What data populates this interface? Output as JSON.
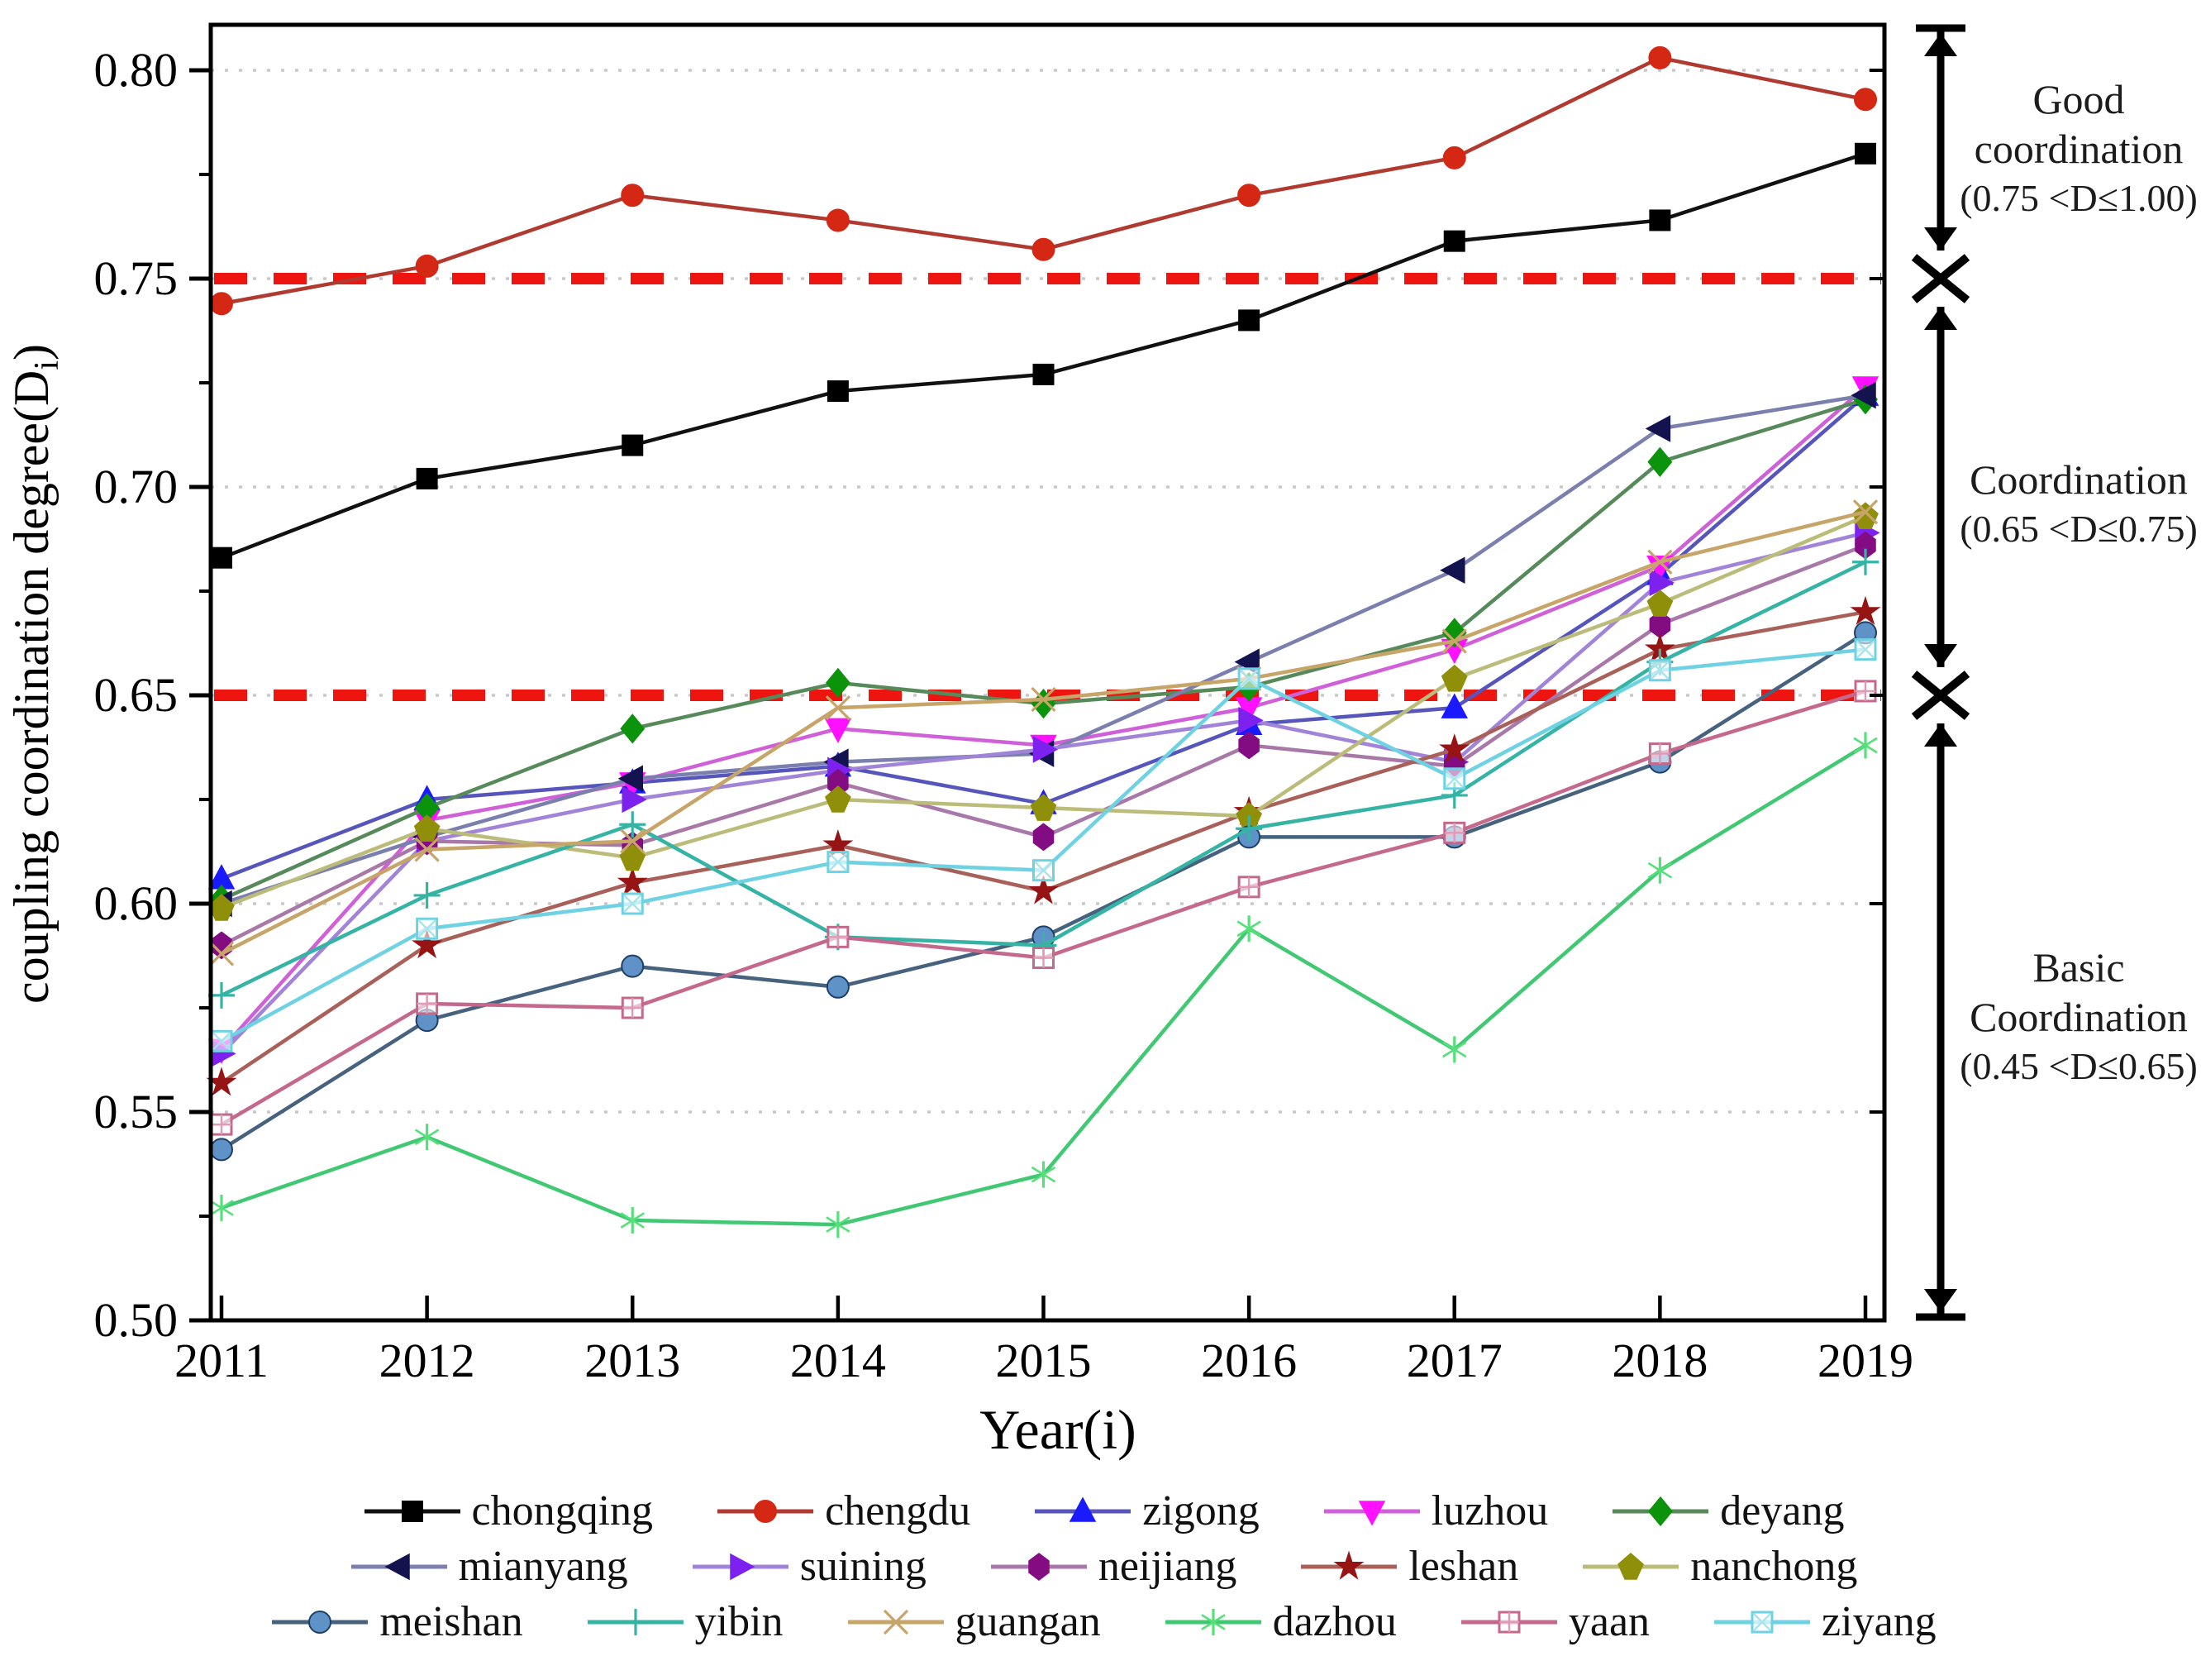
{
  "chart_data": {
    "type": "line",
    "title": "",
    "xlabel": "Year(i)",
    "ylabel": {
      "pre": "coupling coordination degree(D",
      "sub": "i",
      "post": ")"
    },
    "x": [
      2011,
      2012,
      2013,
      2014,
      2015,
      2016,
      2017,
      2018,
      2019
    ],
    "ylim": [
      0.5,
      0.811
    ],
    "yticks": [
      0.5,
      0.55,
      0.6,
      0.65,
      0.7,
      0.75,
      0.8
    ],
    "ytick_labels": [
      "0.50",
      "0.55",
      "0.60",
      "0.65",
      "0.70",
      "0.75",
      "0.80"
    ],
    "yticks_minor": [
      0.525,
      0.575,
      0.625,
      0.675,
      0.725,
      0.775
    ],
    "gridlines": [
      0.55,
      0.6,
      0.65,
      0.7,
      0.75,
      0.8
    ],
    "threshold_lines": [
      0.75,
      0.65
    ],
    "threshold_color": "#ee1410",
    "grid_color": "#c8c8c8",
    "legend_position": "bottom",
    "series": [
      {
        "name": "chongqing",
        "marker": "square",
        "color": "#000000",
        "line": "#111111",
        "values": [
          0.683,
          0.702,
          0.71,
          0.723,
          0.727,
          0.74,
          0.759,
          0.764,
          0.78
        ]
      },
      {
        "name": "chengdu",
        "marker": "circle",
        "color": "#d42714",
        "line": "#b03a30",
        "values": [
          0.744,
          0.753,
          0.77,
          0.764,
          0.757,
          0.77,
          0.779,
          0.803,
          0.793
        ]
      },
      {
        "name": "zigong",
        "marker": "triangle-up",
        "color": "#1a1aff",
        "line": "#5555bb",
        "values": [
          0.606,
          0.625,
          0.629,
          0.633,
          0.624,
          0.643,
          0.647,
          0.679,
          0.722
        ]
      },
      {
        "name": "luzhou",
        "marker": "triangle-down",
        "color": "#ff10ff",
        "line": "#d060d8",
        "values": [
          0.565,
          0.62,
          0.629,
          0.642,
          0.638,
          0.647,
          0.661,
          0.681,
          0.724
        ]
      },
      {
        "name": "deyang",
        "marker": "diamond",
        "color": "#0c930c",
        "line": "#568a5a",
        "values": [
          0.601,
          0.623,
          0.642,
          0.653,
          0.648,
          0.652,
          0.665,
          0.706,
          0.721
        ]
      },
      {
        "name": "mianyang",
        "marker": "triangle-left",
        "color": "#13134f",
        "line": "#7a7fae",
        "values": [
          0.6,
          0.616,
          0.63,
          0.634,
          0.636,
          0.658,
          0.68,
          0.714,
          0.722
        ]
      },
      {
        "name": "suining",
        "marker": "triangle-right",
        "color": "#7d22ee",
        "line": "#a184d8",
        "values": [
          0.564,
          0.615,
          0.625,
          0.632,
          0.637,
          0.644,
          0.634,
          0.677,
          0.689
        ]
      },
      {
        "name": "neijiang",
        "marker": "hexagon",
        "color": "#830c83",
        "line": "#a878a8",
        "values": [
          0.59,
          0.615,
          0.614,
          0.629,
          0.616,
          0.638,
          0.633,
          0.667,
          0.686
        ]
      },
      {
        "name": "leshan",
        "marker": "star",
        "color": "#971414",
        "line": "#a86058",
        "values": [
          0.557,
          0.59,
          0.605,
          0.614,
          0.603,
          0.622,
          0.637,
          0.661,
          0.67
        ]
      },
      {
        "name": "nanchong",
        "marker": "pentagon",
        "color": "#8f8f0a",
        "line": "#bcbc7a",
        "values": [
          0.599,
          0.618,
          0.611,
          0.625,
          0.623,
          0.621,
          0.654,
          0.672,
          0.693
        ]
      },
      {
        "name": "meishan",
        "marker": "circle",
        "color": "#5f93c8",
        "line": "#46627e",
        "edge": "#1f3f66",
        "values": [
          0.541,
          0.572,
          0.585,
          0.58,
          0.592,
          0.616,
          0.616,
          0.634,
          0.665
        ]
      },
      {
        "name": "yibin",
        "marker": "plus",
        "color": "#35b3a5",
        "line": "#35b3a5",
        "values": [
          0.578,
          0.602,
          0.619,
          0.592,
          0.59,
          0.618,
          0.626,
          0.658,
          0.682
        ]
      },
      {
        "name": "guangan",
        "marker": "x",
        "color": "#c7a468",
        "line": "#c7a468",
        "values": [
          0.588,
          0.613,
          0.615,
          0.647,
          0.649,
          0.654,
          0.663,
          0.682,
          0.694
        ]
      },
      {
        "name": "dazhou",
        "marker": "asterisk",
        "color": "#55e07a",
        "line": "#41c873",
        "values": [
          0.527,
          0.544,
          0.524,
          0.523,
          0.535,
          0.594,
          0.565,
          0.608,
          0.638
        ]
      },
      {
        "name": "yaan",
        "marker": "square-plus",
        "color": "#e09ab8",
        "line": "#c4688c",
        "edge": "#c4688c",
        "values": [
          0.547,
          0.576,
          0.575,
          0.592,
          0.587,
          0.604,
          0.617,
          0.636,
          0.651
        ]
      },
      {
        "name": "ziyang",
        "marker": "square-x",
        "color": "#a8e4ee",
        "line": "#6fd2e2",
        "edge": "#6fd2e2",
        "values": [
          0.567,
          0.594,
          0.6,
          0.61,
          0.608,
          0.654,
          0.63,
          0.656,
          0.661
        ]
      }
    ],
    "legend_rows": [
      [
        "chongqing",
        "chengdu",
        "zigong",
        "luzhou",
        "deyang"
      ],
      [
        "mianyang",
        "suining",
        "neijiang",
        "leshan",
        "nanchong"
      ],
      [
        "meishan",
        "yibin",
        "guangan",
        "dazhou",
        "yaan",
        "ziyang"
      ]
    ]
  },
  "annotations": {
    "good": {
      "line1": "Good",
      "line2": "coordination",
      "line3": "(0.75 <D≤1.00)"
    },
    "middle": {
      "line1": "Coordination",
      "line2": "(0.65 <D≤0.75)"
    },
    "basic": {
      "line1": "Basic",
      "line2": "Coordination",
      "line3": "(0.45 <D≤0.65)"
    }
  }
}
